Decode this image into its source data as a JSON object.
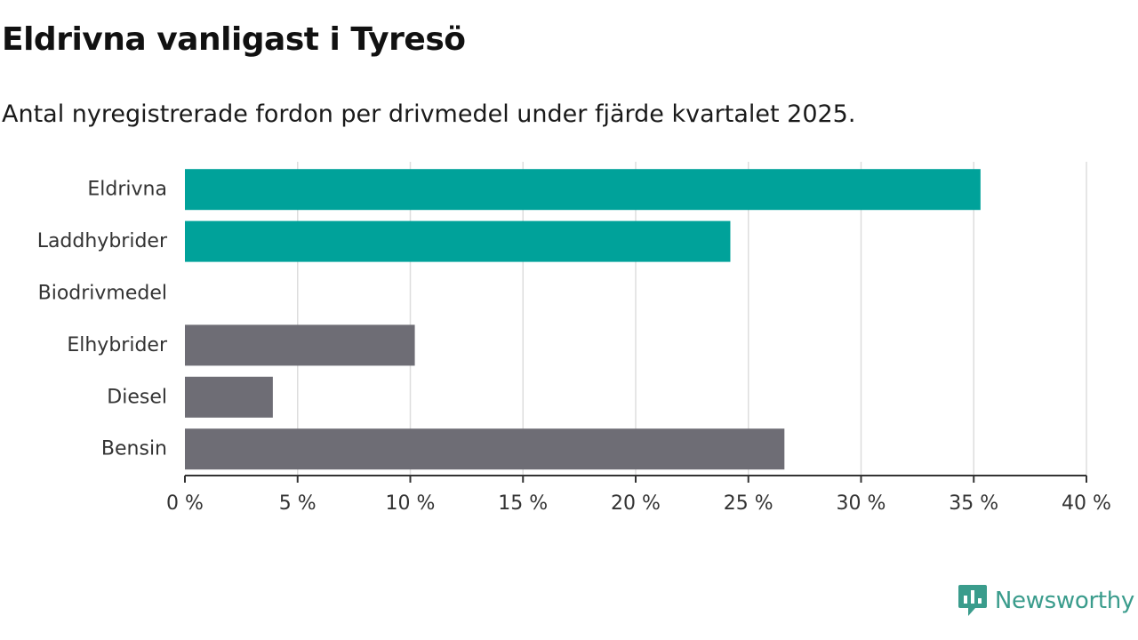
{
  "header": {
    "title": "Eldrivna vanligast i Tyresö",
    "subtitle": "Antal nyregistrerade fordon per drivmedel under fjärde kvartalet 2025."
  },
  "brand": {
    "name": "Newsworthy",
    "icon": "newsworthy-logo-icon",
    "color": "#3a9c8c"
  },
  "chart_data": {
    "type": "bar",
    "orientation": "horizontal",
    "title": "Eldrivna vanligast i Tyresö",
    "subtitle": "Antal nyregistrerade fordon per drivmedel under fjärde kvartalet 2025.",
    "xlabel": "",
    "ylabel": "",
    "categories": [
      "Eldrivna",
      "Laddhybrider",
      "Biodrivmedel",
      "Elhybrider",
      "Diesel",
      "Bensin"
    ],
    "values": [
      35.3,
      24.2,
      0,
      10.2,
      3.9,
      26.6
    ],
    "colors": [
      "#00a29a",
      "#00a29a",
      "#00a29a",
      "#6e6d75",
      "#6e6d75",
      "#6e6d75"
    ],
    "xlim": [
      0,
      40
    ],
    "xticks": [
      0,
      5,
      10,
      15,
      20,
      25,
      30,
      35,
      40
    ],
    "tick_labels": [
      "0 %",
      "5 %",
      "10 %",
      "15 %",
      "20 %",
      "25 %",
      "30 %",
      "35 %",
      "40 %"
    ],
    "grid": "vertical",
    "grid_color": "#dddddd",
    "axis_color": "#333333"
  }
}
